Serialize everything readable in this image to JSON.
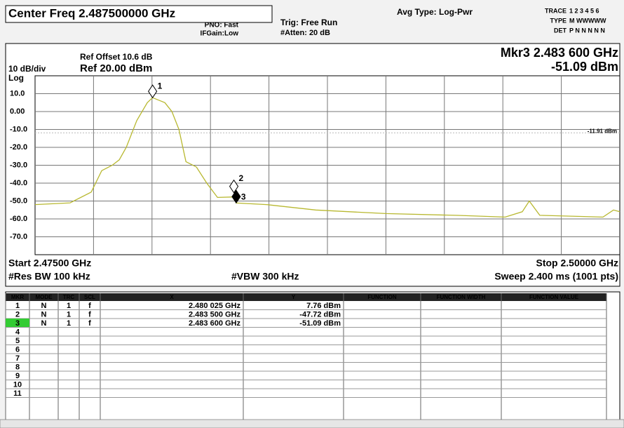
{
  "header": {
    "center_freq": "Center Freq 2.487500000 GHz",
    "pno": "PNO: Fast",
    "ifgain": "IFGain:Low",
    "trig": "Trig: Free Run",
    "atten": "#Atten: 20 dB",
    "avg_type": "Avg Type: Log-Pwr",
    "trace_label": "TRACE",
    "trace_value": "1 2 3 4 5 6",
    "type_label": "TYPE",
    "type_value": "M WWWWW",
    "det_label": "DET",
    "det_value": "P N N N N N"
  },
  "chart_data": {
    "type": "line",
    "ref_offset": "Ref Offset 10.6 dB",
    "ref_level": "Ref 20.00 dBm",
    "scale": "10 dB/div",
    "scale_type": "Log",
    "active_marker_freq": "Mkr3 2.483 600 GHz",
    "active_marker_level": "-51.09 dBm",
    "x": [
      2.475,
      2.4765,
      2.4774,
      2.47785,
      2.4783,
      2.4786,
      2.4789,
      2.47935,
      2.4798,
      2.480025,
      2.48055,
      2.48085,
      2.48115,
      2.48145,
      2.4819,
      2.48234,
      2.4828,
      2.4835,
      2.4836,
      2.4849,
      2.487,
      2.49,
      2.493,
      2.4951,
      2.49583,
      2.49613,
      2.49658,
      2.49928,
      2.49973,
      2.5
    ],
    "values": [
      -52,
      -51,
      -45,
      -33,
      -30,
      -27,
      -20,
      -5,
      5,
      7.76,
      5,
      0,
      -10,
      -28,
      -31,
      -40,
      -48,
      -47.72,
      -51.09,
      -52,
      -55,
      -57,
      -58,
      -59,
      -56,
      -50,
      -58,
      -59,
      -55,
      -56
    ],
    "color": "#b8b830",
    "xlim": [
      2.475,
      2.5
    ],
    "ylim": [
      -80,
      20
    ],
    "yticks": [
      {
        "value": 10,
        "label": "10.0"
      },
      {
        "value": 0,
        "label": "0.00"
      },
      {
        "value": -10,
        "label": "-10.0"
      },
      {
        "value": -20,
        "label": "-20.0"
      },
      {
        "value": -30,
        "label": "-30.0"
      },
      {
        "value": -40,
        "label": "-40.0"
      },
      {
        "value": -50,
        "label": "-50.0"
      },
      {
        "value": -60,
        "label": "-60.0"
      },
      {
        "value": -70,
        "label": "-70.0"
      }
    ],
    "grid": true,
    "display_line": {
      "value": -11.91,
      "label": "-11.91 dBm"
    },
    "markers": [
      {
        "label": "1",
        "x": 2.480025,
        "y": 7.76
      },
      {
        "label": "2",
        "x": 2.4835,
        "y": -47.72
      },
      {
        "label": "3",
        "x": 2.4836,
        "y": -51.09
      }
    ]
  },
  "footer": {
    "start": "Start 2.47500 GHz",
    "stop": "Stop 2.50000 GHz",
    "rbw": "#Res BW 100 kHz",
    "vbw": "#VBW 300 kHz",
    "sweep": "Sweep  2.400 ms (1001 pts)"
  },
  "table": {
    "columns": [
      "MKR",
      "MODE",
      "TRC",
      "SCL",
      "X",
      "Y",
      "FUNCTION",
      "FUNCTION WIDTH",
      "FUNCTION VALUE"
    ],
    "rows": [
      [
        "1",
        "N",
        "1",
        "f",
        "2.480 025 GHz",
        "7.76 dBm"
      ],
      [
        "2",
        "N",
        "1",
        "f",
        "2.483 500 GHz",
        "-47.72 dBm"
      ],
      [
        "3",
        "N",
        "1",
        "f",
        "2.483 600 GHz",
        "-51.09 dBm"
      ],
      [
        "4"
      ],
      [
        "5"
      ],
      [
        "6"
      ],
      [
        "7"
      ],
      [
        "8"
      ],
      [
        "9"
      ],
      [
        "10"
      ],
      [
        "11"
      ]
    ]
  }
}
